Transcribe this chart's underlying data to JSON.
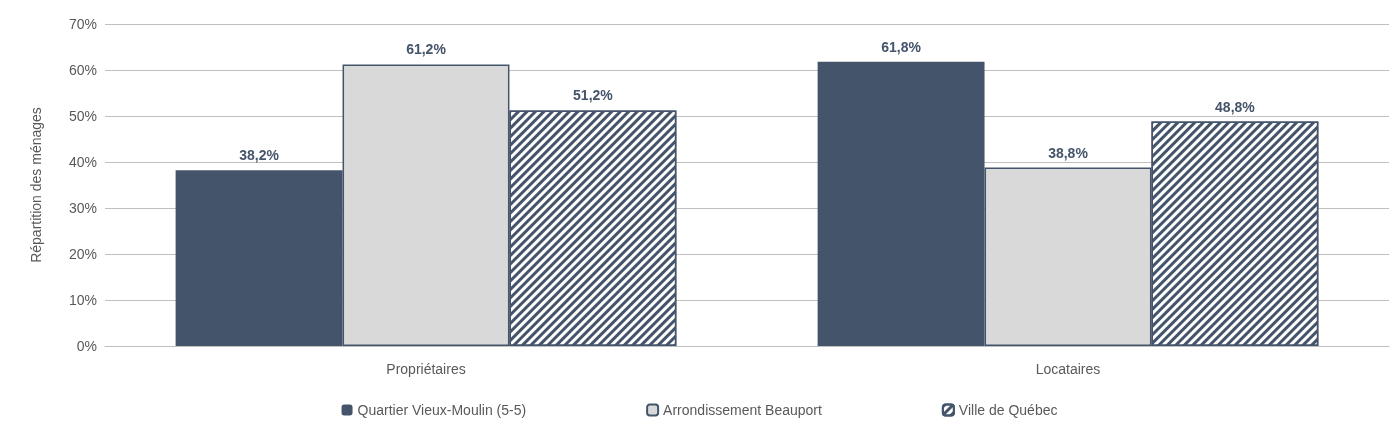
{
  "chart_data": {
    "type": "bar",
    "ylabel": "Répartition des ménages",
    "categories": [
      "Propriétaires",
      "Locataires"
    ],
    "series": [
      {
        "name": "Quartier Vieux-Moulin (5-5)",
        "color": "#44546a",
        "values": [
          38.2,
          61.8
        ],
        "value_labels": [
          "38,2%",
          "61,8%"
        ]
      },
      {
        "name": "Arrondissement Beauport",
        "color": "#d9d9d9",
        "values": [
          61.2,
          38.8
        ],
        "value_labels": [
          "61,2%",
          "38,8%"
        ]
      },
      {
        "name": "Ville de Québec",
        "color": "#44546a",
        "values": [
          51.2,
          48.8
        ],
        "value_labels": [
          "51,2%",
          "48,8%"
        ]
      }
    ],
    "ylim": [
      0,
      70
    ],
    "yticks": [
      {
        "value": 0,
        "label": "0%"
      },
      {
        "value": 10,
        "label": "10%"
      },
      {
        "value": 20,
        "label": "20%"
      },
      {
        "value": 30,
        "label": "30%"
      },
      {
        "value": 40,
        "label": "40%"
      },
      {
        "value": 50,
        "label": "50%"
      },
      {
        "value": 60,
        "label": "60%"
      },
      {
        "value": 70,
        "label": "70%"
      }
    ],
    "grid": "y",
    "legend": "bottom"
  }
}
